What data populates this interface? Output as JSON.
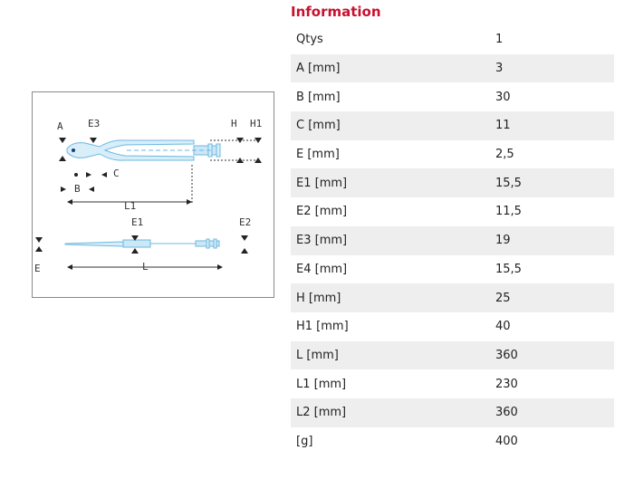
{
  "section_title": "Information",
  "drawing_labels": {
    "A": "A",
    "E3": "E3",
    "H": "H",
    "H1": "H1",
    "C": "C",
    "B": "B",
    "L1": "L1",
    "E1": "E1",
    "E2": "E2",
    "E": "E",
    "L": "L"
  },
  "specs": [
    {
      "label": "Qtys",
      "value": "1"
    },
    {
      "label": "A [mm]",
      "value": "3"
    },
    {
      "label": "B [mm]",
      "value": "30"
    },
    {
      "label": "C [mm]",
      "value": "11"
    },
    {
      "label": "E [mm]",
      "value": "2,5"
    },
    {
      "label": "E1 [mm]",
      "value": "15,5"
    },
    {
      "label": "E2 [mm]",
      "value": "11,5"
    },
    {
      "label": "E3 [mm]",
      "value": "19"
    },
    {
      "label": "E4 [mm]",
      "value": "15,5"
    },
    {
      "label": "H [mm]",
      "value": "25"
    },
    {
      "label": "H1 [mm]",
      "value": "40"
    },
    {
      "label": "L [mm]",
      "value": "360"
    },
    {
      "label": "L1 [mm]",
      "value": "230"
    },
    {
      "label": "L2 [mm]",
      "value": "360"
    },
    {
      "label": "[g]",
      "value": "400"
    }
  ]
}
